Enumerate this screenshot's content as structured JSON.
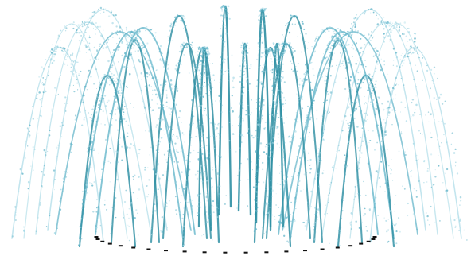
{
  "scene": {
    "subject": "",
    "colors": {
      "background": "#ffffff",
      "water_dark": "#2f8fa3",
      "water_mid": "#5fb3c8",
      "water_light": "#a6d9e6",
      "nozzle": "#111111"
    }
  }
}
